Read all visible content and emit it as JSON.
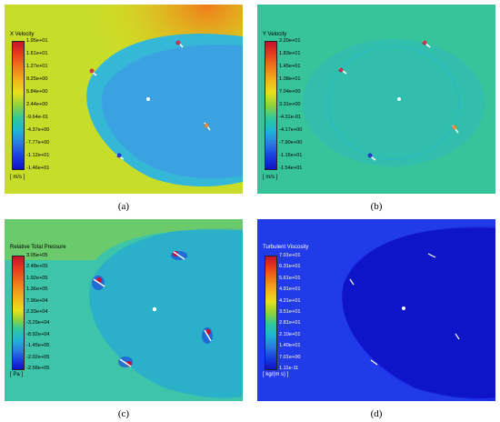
{
  "panels": [
    {
      "id": "a",
      "caption": "(a)",
      "title": "X Velocity",
      "unit": "[ m/s ]",
      "ticks": [
        "1.95e+01",
        "1.61e+01",
        "1.27e+01",
        "9.25e+00",
        "5.84e+00",
        "2.44e+00",
        "-9.64e-01",
        "-4.37e+00",
        "-7.77e+00",
        "-1.12e+01",
        "-1.46e+01"
      ]
    },
    {
      "id": "b",
      "caption": "(b)",
      "title": "Y Velocity",
      "unit": "[ m/s ]",
      "ticks": [
        "2.20e+01",
        "1.83e+01",
        "1.45e+01",
        "1.08e+01",
        "7.04e+00",
        "3.31e+00",
        "-4.31e-01",
        "-4.17e+00",
        "-7.90e+00",
        "-1.16e+01",
        "-1.54e+01"
      ]
    },
    {
      "id": "c",
      "caption": "(c)",
      "title": "Relative Total Pressure",
      "unit": "[ Pa ]",
      "ticks": [
        "3.05e+05",
        "2.48e+05",
        "1.92e+05",
        "1.36e+05",
        "7.96e+04",
        "2.33e+04",
        "-3.29e+04",
        "-8.92e+04",
        "-1.45e+05",
        "-2.02e+05",
        "-2.58e+05"
      ]
    },
    {
      "id": "d",
      "caption": "(d)",
      "title": "Turbulent Viscosity",
      "unit": "[ kg/(m s) ]",
      "ticks": [
        "7.01e+01",
        "6.31e+01",
        "5.61e+01",
        "4.91e+01",
        "4.21e+01",
        "3.51e+01",
        "2.81e+01",
        "2.10e+01",
        "1.40e+01",
        "7.01e+00",
        "1.11e-11"
      ]
    }
  ],
  "colors": {
    "rainbow": [
      "#c8102e",
      "#e8401c",
      "#f07a1a",
      "#f2b21a",
      "#e8e01c",
      "#8fd23a",
      "#2fc89a",
      "#1fb4d8",
      "#2a7ae0",
      "#1a3ee0",
      "#1010c8"
    ],
    "turbulent_bg": "#1a2ee8"
  }
}
